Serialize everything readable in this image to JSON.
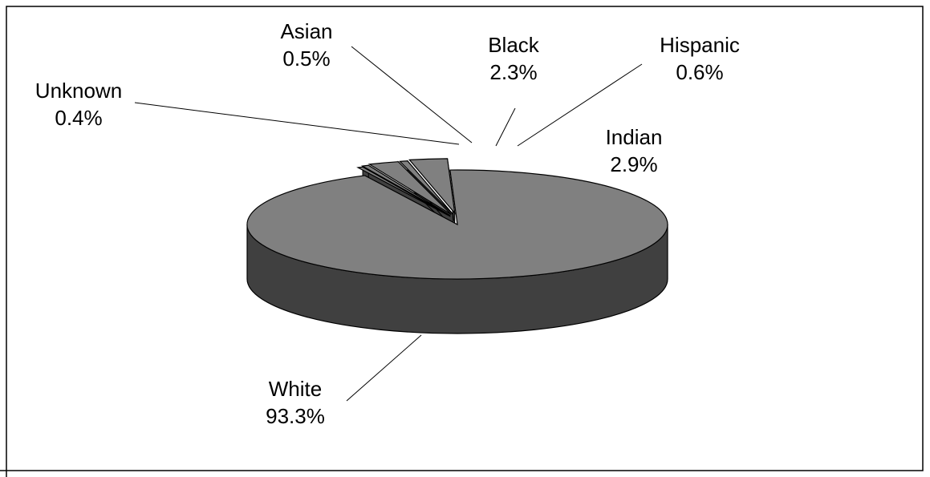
{
  "chart_data": {
    "type": "pie",
    "three_d": true,
    "exploded": true,
    "title": "",
    "slices": [
      {
        "label": "White",
        "value": 93.3,
        "display": "93.3%",
        "color": "#808080"
      },
      {
        "label": "Unknown",
        "value": 0.4,
        "display": "0.4%",
        "color": "#808080"
      },
      {
        "label": "Asian",
        "value": 0.5,
        "display": "0.5%",
        "color": "#808080"
      },
      {
        "label": "Black",
        "value": 2.3,
        "display": "2.3%",
        "color": "#808080"
      },
      {
        "label": "Hispanic",
        "value": 0.6,
        "display": "0.6%",
        "color": "#808080"
      },
      {
        "label": "Indian",
        "value": 2.9,
        "display": "2.9%",
        "color": "#808080"
      }
    ],
    "side_color": "#404040",
    "outline_color": "#000000"
  }
}
